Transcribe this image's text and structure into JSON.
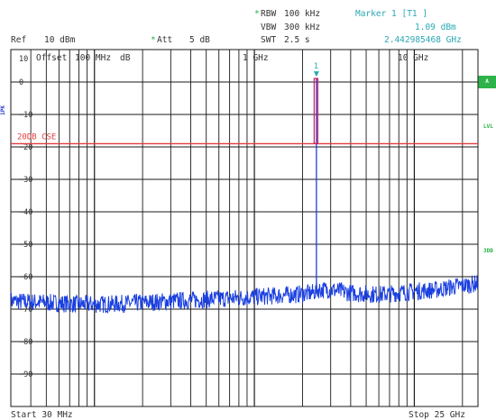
{
  "header": {
    "rbw_label": "RBW",
    "rbw_value": "100 kHz",
    "vbw_label": "VBW",
    "vbw_value": "300 kHz",
    "swt_label": "SWT",
    "swt_value": "2.5 s",
    "att_label": "Att",
    "att_value": "5 dB",
    "ref_label": "Ref",
    "ref_value": "10 dBm",
    "marker_title": "Marker 1 [T1 ]",
    "marker_level": "1.09 dBm",
    "marker_freq": "2.442985468 GHz",
    "asterisk": "*"
  },
  "plot": {
    "offset_text": "Offset",
    "offset_value": "100 MHz",
    "offset_unit": "dB",
    "ghz1": "1 GHz",
    "ghz10": "10 GHz",
    "limit_label": "20DB CSE",
    "marker_label": "1",
    "start_label": "Start 30 MHz",
    "stop_label": "Stop 25 GHz"
  },
  "sidebar": {
    "a_label": "A",
    "lvl_label": "LVL",
    "db3_label": "3DB",
    "left_label": "1PK"
  },
  "colors": {
    "trace": "#1a3fe0",
    "limit": "#e03c3c",
    "marker": "#d21a52",
    "accent_cyan": "#2aa8b5",
    "accent_green": "#2db34a"
  },
  "chart_data": {
    "type": "line",
    "title": "",
    "xlabel": "",
    "ylabel": "",
    "x_scale": "log",
    "xlim_mhz": [
      30,
      25000
    ],
    "ylim": [
      -100,
      10
    ],
    "y_ticks": [
      10,
      0,
      -10,
      -20,
      -30,
      -40,
      -50,
      -60,
      -70,
      -80,
      -90
    ],
    "grid": true,
    "limit_line": {
      "label": "20DB CSE",
      "value_dbm": -19
    },
    "marker": {
      "name": "1",
      "freq_mhz": 2442.985468,
      "level_dbm": 1.09
    },
    "series": [
      {
        "x_mhz": [
          30,
          50,
          80,
          120,
          200,
          300,
          500,
          800,
          1200,
          1800,
          2300,
          2430,
          2500,
          3000,
          4000,
          6000,
          8000,
          10000,
          14000,
          18000,
          22000,
          25000
        ],
        "y_dbm": [
          -67.5,
          -68,
          -68.5,
          -68.5,
          -68,
          -67.5,
          -67,
          -66.5,
          -66,
          -65.5,
          -65,
          -64.5,
          -64,
          -64,
          -65,
          -65.5,
          -65,
          -64.5,
          -64,
          -63,
          -62.5,
          -62
        ]
      }
    ]
  }
}
